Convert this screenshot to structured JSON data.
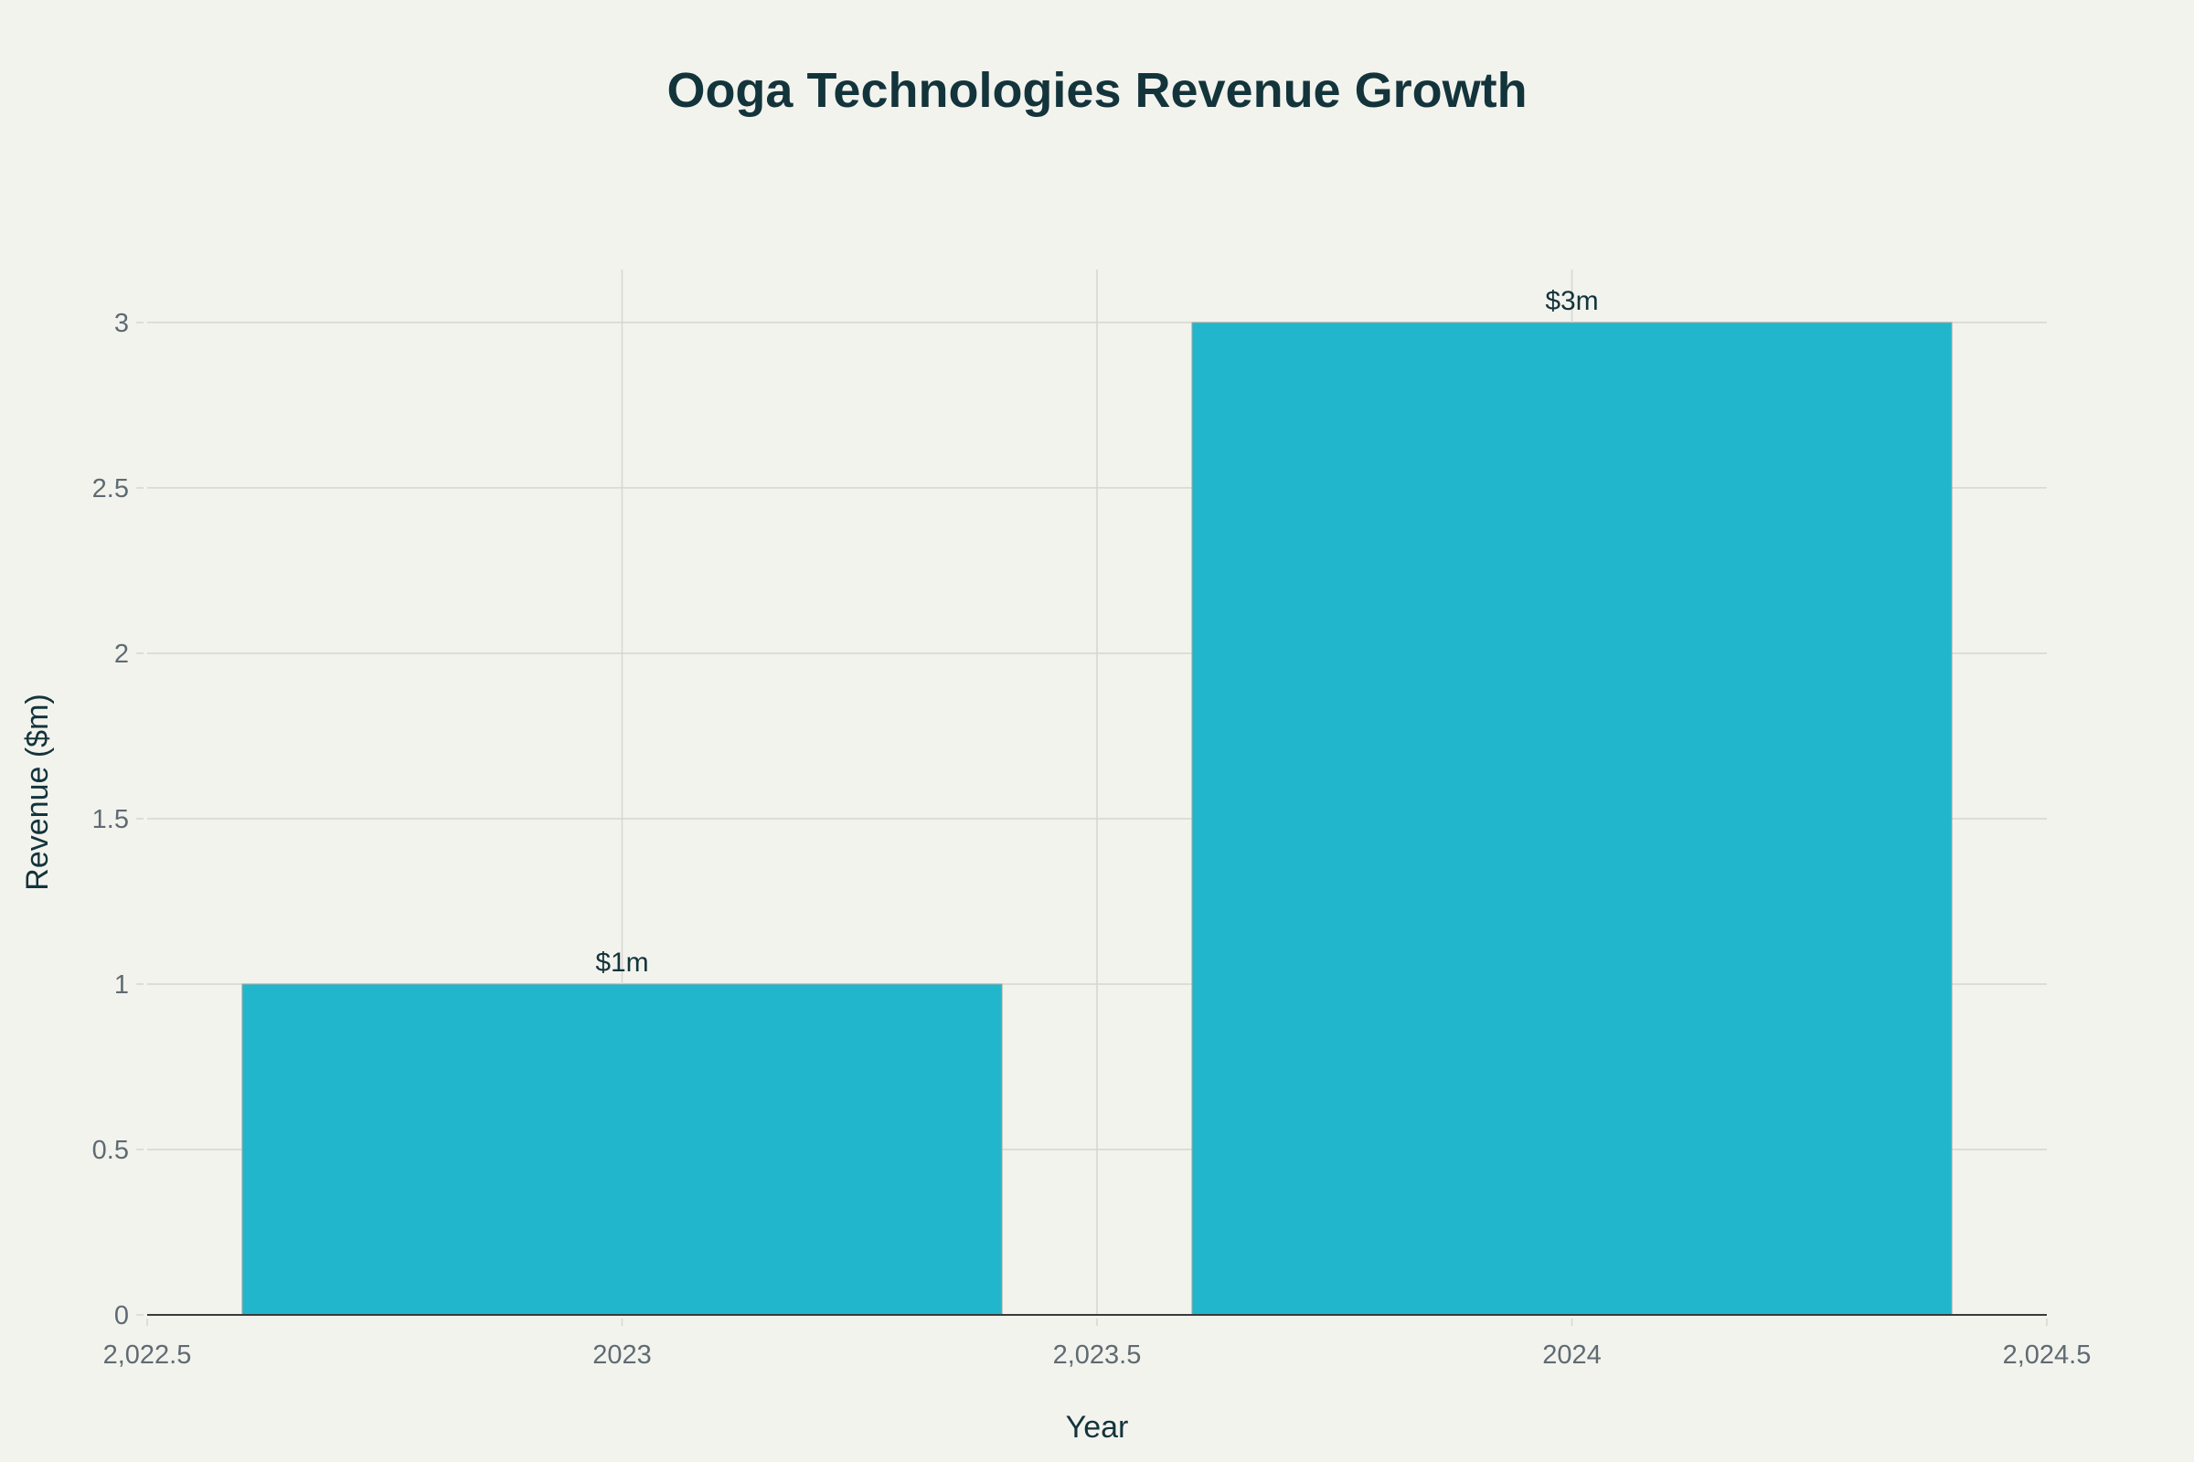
{
  "chart_data": {
    "type": "bar",
    "title": "Ooga Technologies Revenue Growth",
    "xlabel": "Year",
    "ylabel": "Revenue ($m)",
    "x": [
      2023,
      2024
    ],
    "values": [
      1,
      3
    ],
    "data_labels": [
      "$1m",
      "$3m"
    ],
    "bar_width": 0.8,
    "xlim": [
      2022.5,
      2024.5
    ],
    "ylim": [
      0,
      3.16
    ],
    "x_ticks": [
      2022.5,
      2023,
      2023.5,
      2024,
      2024.5
    ],
    "x_tick_labels": [
      "2,022.5",
      "2023",
      "2,023.5",
      "2024",
      "2,024.5"
    ],
    "y_ticks": [
      0,
      0.5,
      1,
      1.5,
      2,
      2.5,
      3
    ],
    "y_tick_labels": [
      "0",
      "0.5",
      "1",
      "1.5",
      "2",
      "2.5",
      "3"
    ],
    "grid": true,
    "legend": "none",
    "colors": {
      "bar": "#21b6cc",
      "background": "#f3f3ee",
      "grid": "#d6d6d0",
      "title": "#13343b"
    }
  }
}
